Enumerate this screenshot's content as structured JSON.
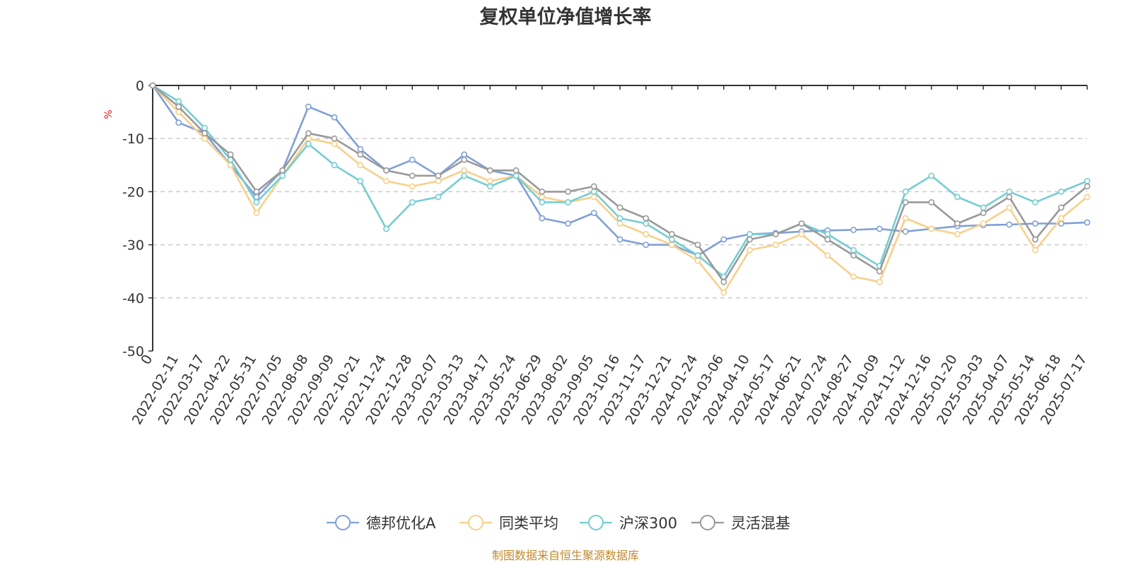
{
  "chart_data": {
    "type": "line",
    "title": "复权单位净值增长率",
    "y_unit": "%",
    "ylim": [
      -50,
      0
    ],
    "y_ticks": [
      0,
      -10,
      -20,
      -30,
      -40,
      -50
    ],
    "grid": "horizontal-dashed",
    "legend_position": "bottom-center",
    "x_labels": [
      "0",
      "2022-02-11",
      "2022-03-17",
      "2022-04-22",
      "2022-05-31",
      "2022-07-05",
      "2022-08-08",
      "2022-09-09",
      "2022-10-21",
      "2022-11-24",
      "2022-12-28",
      "2023-02-07",
      "2023-03-13",
      "2023-04-17",
      "2023-05-24",
      "2023-06-29",
      "2023-08-02",
      "2023-09-05",
      "2023-10-16",
      "2023-11-17",
      "2023-12-21",
      "2024-01-24",
      "2024-03-06",
      "2024-04-10",
      "2024-05-17",
      "2024-06-21",
      "2024-07-24",
      "2024-08-27",
      "2024-10-09",
      "2024-11-12",
      "2024-12-16",
      "2025-01-20",
      "2025-03-03",
      "2025-04-07",
      "2025-05-14",
      "2025-06-18",
      "2025-07-17"
    ],
    "series": [
      {
        "name": "德邦优化A",
        "color": "#7f9fd8",
        "values": [
          0,
          -7,
          -9,
          -15,
          -21,
          -16,
          -4,
          -6,
          -12,
          -16,
          -14,
          -17,
          -13,
          -16,
          -17,
          -25,
          -26,
          -24,
          -29,
          -30,
          -30,
          -32,
          -29,
          -28,
          -27.8,
          -27.5,
          -27.3,
          -27.2,
          -27,
          -27.5,
          -27,
          -26.5,
          -26.3,
          -26.2,
          -26,
          -26,
          -25.8
        ]
      },
      {
        "name": "同类平均",
        "color": "#f7d08a",
        "values": [
          0,
          -5,
          -10,
          -15,
          -24,
          -17,
          -10,
          -11,
          -15,
          -18,
          -19,
          -18,
          -16,
          -18,
          -17,
          -21,
          -22,
          -21,
          -26,
          -28,
          -30,
          -33,
          -39,
          -31,
          -30,
          -28,
          -32,
          -36,
          -37,
          -25,
          -27,
          -28,
          -26,
          -23,
          -31,
          -25,
          -21
        ]
      },
      {
        "name": "沪深300",
        "color": "#73cdd2",
        "values": [
          0,
          -3,
          -8,
          -14,
          -22,
          -17,
          -11,
          -15,
          -18,
          -27,
          -22,
          -21,
          -17,
          -19,
          -17,
          -22,
          -22,
          -20,
          -25,
          -26,
          -29,
          -32,
          -36,
          -28,
          -28,
          -26,
          -28,
          -31,
          -34,
          -20,
          -17,
          -21,
          -23,
          -20,
          -22,
          -20,
          -18
        ]
      },
      {
        "name": "灵活混基",
        "color": "#999999",
        "values": [
          0,
          -4,
          -9,
          -13,
          -20,
          -16,
          -9,
          -10,
          -13,
          -16,
          -17,
          -17,
          -14,
          -16,
          -16,
          -20,
          -20,
          -19,
          -23,
          -25,
          -28,
          -30,
          -37,
          -29,
          -28,
          -26,
          -29,
          -32,
          -35,
          -22,
          -22,
          -26,
          -24,
          -21,
          -29,
          -23,
          -19
        ]
      }
    ]
  },
  "legend": {
    "items": [
      "德邦优化A",
      "同类平均",
      "沪深300",
      "灵活混基"
    ]
  },
  "source": "制图数据来自恒生聚源数据库"
}
